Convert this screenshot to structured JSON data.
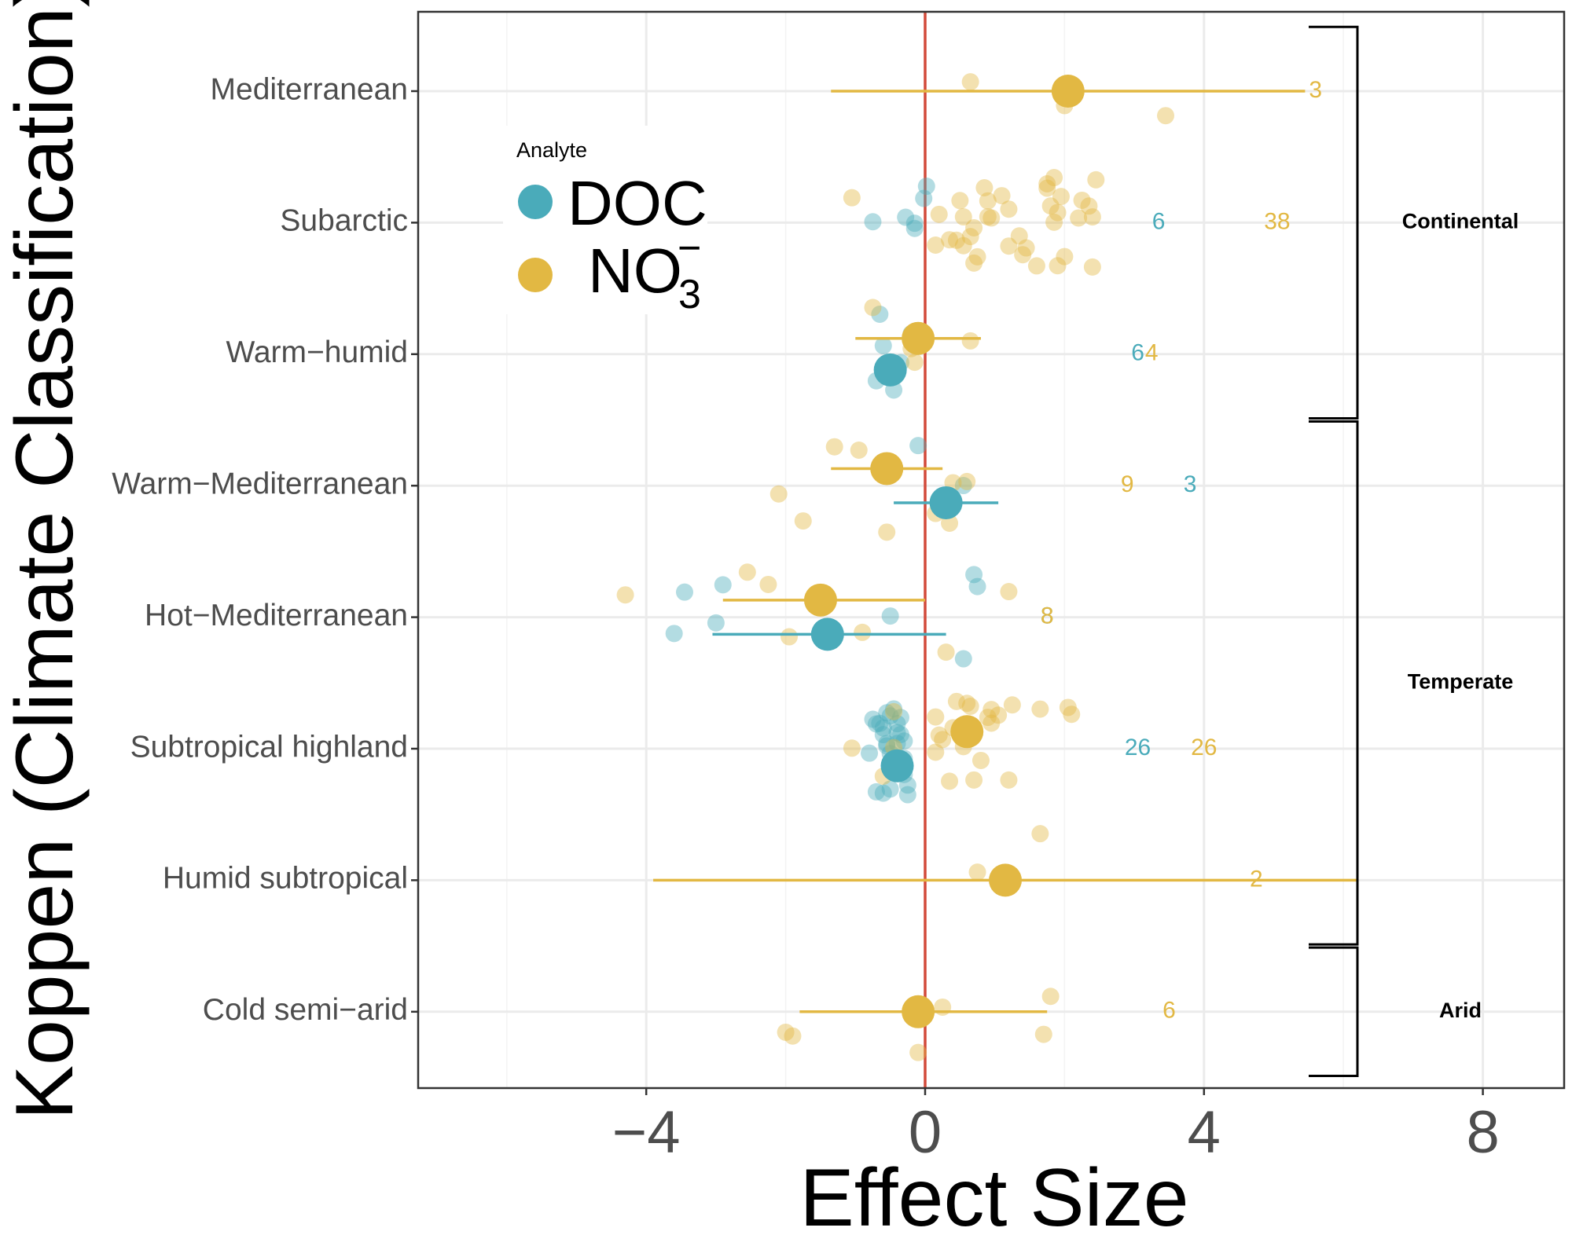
{
  "chart_data": {
    "type": "scatter",
    "title": "",
    "xlabel": "Effect Size",
    "ylabel": "Koppen (Climate Classification)",
    "xlim": [
      -7.2,
      9.0
    ],
    "xticks": [
      -4,
      0,
      4,
      8
    ],
    "xtick_labels": [
      "−4",
      "0",
      "4",
      "8"
    ],
    "reference_line_x": 0,
    "categories": [
      "Mediterranean",
      "Subarctic",
      "Warm−humid",
      "Warm−Mediterranean",
      "Hot−Mediterranean",
      "Subtropical highland",
      "Humid subtropical",
      "Cold semi−arid"
    ],
    "legend": {
      "title": "Analyte",
      "entries": [
        {
          "key": "DOC",
          "label": "DOC",
          "color": "#4aabba"
        },
        {
          "key": "NO3",
          "label": "NO",
          "sub": "3",
          "sup": "−",
          "color": "#e2b843"
        }
      ]
    },
    "groups": [
      {
        "label": "Continental",
        "from": "Mediterranean",
        "to": "Warm−humid"
      },
      {
        "label": "Temperate",
        "from": "Warm−Mediterranean",
        "to": "Humid subtropical"
      },
      {
        "label": "Arid",
        "from": "Cold semi−arid",
        "to": "Cold semi−arid"
      }
    ],
    "series": [
      {
        "name": "DOC",
        "color": "#4aabba",
        "summary": [
          {
            "category": "Subarctic",
            "n": "6",
            "n_x": 3.35
          },
          {
            "category": "Warm−humid",
            "mean": -0.5,
            "ci": [
              -0.5,
              -0.5
            ],
            "n": "6",
            "n_x": 3.05,
            "offset": 0.12
          },
          {
            "category": "Warm−Mediterranean",
            "mean": 0.3,
            "ci": [
              -0.45,
              1.05
            ],
            "n": "3",
            "n_x": 3.8,
            "offset": 0.13
          },
          {
            "category": "Hot−Mediterranean",
            "mean": -1.4,
            "ci": [
              -3.05,
              0.3
            ],
            "n": "8",
            "n_x": 1.75,
            "offset": 0.13
          },
          {
            "category": "Subtropical highland",
            "mean": -0.4,
            "ci": [
              -0.4,
              -0.4
            ],
            "n": "26",
            "n_x": 3.05,
            "offset": 0.13
          }
        ],
        "points": [
          {
            "category": "Subarctic",
            "x": [
              -0.75,
              -0.15,
              0.02,
              -0.02,
              -0.28,
              -0.15
            ]
          },
          {
            "category": "Warm−humid",
            "x": [
              -0.65,
              -0.45,
              -0.35,
              -0.6,
              -0.2,
              -0.7
            ]
          },
          {
            "category": "Warm−Mediterranean",
            "x": [
              0.35,
              -0.1,
              0.55
            ]
          },
          {
            "category": "Hot−Mediterranean",
            "x": [
              -3.45,
              -3.6,
              -2.9,
              -3.0,
              -0.5,
              0.75,
              0.7,
              0.55
            ]
          },
          {
            "category": "Subtropical highland",
            "x": [
              -0.6,
              -0.55,
              -0.4,
              -0.7,
              -0.75,
              -0.3,
              -0.5,
              -0.45,
              -0.6,
              -0.35,
              -0.25,
              -0.55,
              -0.65,
              -0.8,
              -0.4,
              -0.5,
              -0.3,
              -0.6,
              -0.35,
              -0.45,
              -0.5,
              -0.7,
              -0.25,
              -0.55,
              -0.4,
              -0.3
            ]
          }
        ]
      },
      {
        "name": "NO3",
        "color": "#e2b843",
        "summary": [
          {
            "category": "Mediterranean",
            "mean": 2.05,
            "ci": [
              -1.35,
              5.45
            ],
            "n": "3",
            "n_x": 5.6,
            "offset": 0
          },
          {
            "category": "Subarctic",
            "n": "38",
            "n_x": 5.05
          },
          {
            "category": "Warm−humid",
            "mean": -0.1,
            "ci": [
              -1.0,
              0.8
            ],
            "n": "4",
            "n_x": 3.25,
            "offset": -0.12
          },
          {
            "category": "Warm−Mediterranean",
            "mean": -0.55,
            "ci": [
              -1.35,
              0.25
            ],
            "n": "9",
            "n_x": 2.9,
            "offset": -0.13
          },
          {
            "category": "Hot−Mediterranean",
            "mean": -1.5,
            "ci": [
              -2.9,
              0.0
            ],
            "n": "8",
            "n_x": 1.75,
            "offset": -0.13
          },
          {
            "category": "Subtropical highland",
            "mean": 0.6,
            "ci": [
              0.6,
              0.6
            ],
            "n": "26",
            "n_x": 4.0,
            "offset": -0.13
          },
          {
            "category": "Humid subtropical",
            "mean": 1.15,
            "ci": [
              -3.9,
              6.2
            ],
            "n": "2",
            "n_x": 4.75,
            "offset": 0
          },
          {
            "category": "Cold semi−arid",
            "mean": -0.1,
            "ci": [
              -1.8,
              1.75
            ],
            "n": "6",
            "n_x": 3.5,
            "offset": 0
          }
        ],
        "points": [
          {
            "category": "Mediterranean",
            "x": [
              0.65,
              3.45,
              2.0
            ]
          },
          {
            "category": "Subarctic",
            "x": [
              1.75,
              1.95,
              0.95,
              1.75,
              2.45,
              0.2,
              0.35,
              0.65,
              1.9,
              2.35,
              0.9,
              1.85,
              0.55,
              1.4,
              2.2,
              2.4,
              2.25,
              -1.05,
              0.55,
              0.85,
              0.9,
              1.45,
              2.0,
              2.4,
              0.7,
              0.75,
              1.2,
              1.35,
              0.7,
              1.85,
              1.8,
              1.2,
              1.1,
              1.9,
              0.45,
              0.15,
              0.5,
              1.6
            ]
          },
          {
            "category": "Warm−humid",
            "x": [
              -0.75,
              0.65,
              -0.15,
              -0.2
            ]
          },
          {
            "category": "Warm−Mediterranean",
            "x": [
              -1.3,
              -0.55,
              0.6,
              -1.75,
              -2.1,
              0.4,
              -0.95,
              0.15,
              0.35
            ]
          },
          {
            "category": "Hot−Mediterranean",
            "x": [
              -4.3,
              -2.55,
              -2.25,
              -1.95,
              -1.4,
              -0.9,
              0.3,
              1.2
            ]
          },
          {
            "category": "Subtropical highland",
            "x": [
              0.7,
              0.9,
              1.25,
              1.65,
              0.6,
              0.15,
              1.2,
              0.35,
              1.05,
              -1.05,
              0.65,
              0.4,
              -0.45,
              2.05,
              0.2,
              0.95,
              0.55,
              -0.6,
              2.1,
              0.15,
              0.45,
              0.8,
              0.95,
              0.25,
              -0.45,
              0.55
            ]
          },
          {
            "category": "Humid subtropical",
            "x": [
              0.75,
              1.65
            ]
          },
          {
            "category": "Cold semi−arid",
            "x": [
              -1.9,
              0.25,
              1.7,
              1.8,
              -0.1,
              -2.0
            ]
          }
        ]
      }
    ]
  }
}
